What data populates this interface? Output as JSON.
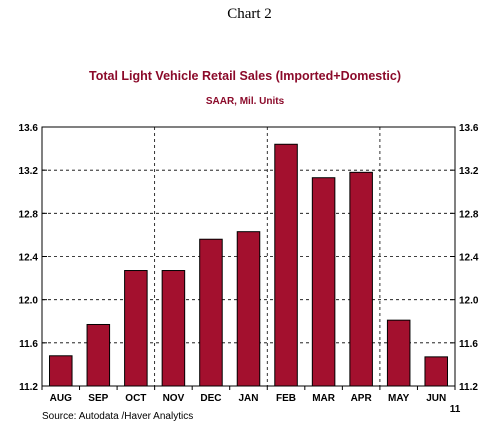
{
  "heading": "Chart 2",
  "chart_data": {
    "type": "bar",
    "title": "Total Light Vehicle Retail Sales (Imported+Domestic)",
    "subtitle": "SAAR, Mil. Units",
    "categories": [
      "AUG",
      "SEP",
      "OCT",
      "NOV",
      "DEC",
      "JAN",
      "FEB",
      "MAR",
      "APR",
      "MAY",
      "JUN"
    ],
    "values": [
      11.48,
      11.77,
      12.27,
      12.27,
      12.56,
      12.63,
      13.44,
      13.13,
      13.18,
      11.81,
      11.47
    ],
    "year_label": "11",
    "ylim": [
      11.2,
      13.6
    ],
    "yticks": [
      "11.2",
      "11.6",
      "12.0",
      "12.4",
      "12.8",
      "13.2",
      "13.6"
    ],
    "grid": true,
    "bar_color": "#a3102e",
    "source": "Source:   Autodata /Haver Analytics"
  }
}
